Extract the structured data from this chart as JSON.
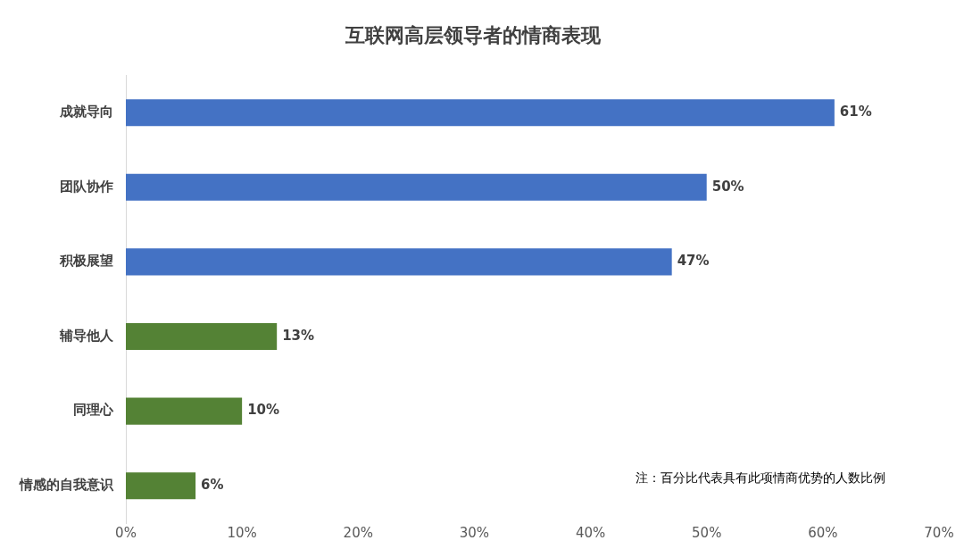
{
  "chart_data": {
    "type": "bar",
    "orientation": "horizontal",
    "title": "互联网高层领导者的情商表现",
    "categories": [
      "成就导向",
      "团队协作",
      "积极展望",
      "辅导他人",
      "同理心",
      "情感的自我意识"
    ],
    "values": [
      61,
      50,
      47,
      13,
      10,
      6
    ],
    "colors": [
      "#4472c4",
      "#4472c4",
      "#4472c4",
      "#548235",
      "#548235",
      "#548235"
    ],
    "value_labels": [
      "61%",
      "50%",
      "47%",
      "13%",
      "10%",
      "6%"
    ],
    "xlim": [
      0,
      70
    ],
    "xticks": [
      {
        "value": 0,
        "label": "0%"
      },
      {
        "value": 10,
        "label": "10%"
      },
      {
        "value": 20,
        "label": "20%"
      },
      {
        "value": 30,
        "label": "30%"
      },
      {
        "value": 40,
        "label": "40%"
      },
      {
        "value": 50,
        "label": "50%"
      },
      {
        "value": 60,
        "label": "60%"
      },
      {
        "value": 70,
        "label": "70%"
      }
    ],
    "grid": false,
    "legend": false,
    "annotations": [
      "注：百分比代表具有此项情商优势的人数比例"
    ]
  }
}
